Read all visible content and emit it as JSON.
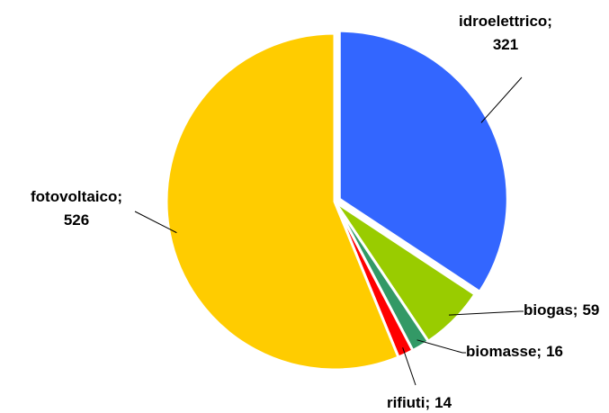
{
  "chart_data": {
    "type": "pie",
    "categories": [
      "idroelettrico;",
      "biogas;",
      "biomasse;",
      "rifiuti;",
      "fotovoltaico;"
    ],
    "values": [
      321,
      59,
      16,
      14,
      526
    ],
    "colors": [
      "#3366ff",
      "#99cc00",
      "#339966",
      "#ff0000",
      "#ffcc00"
    ]
  }
}
